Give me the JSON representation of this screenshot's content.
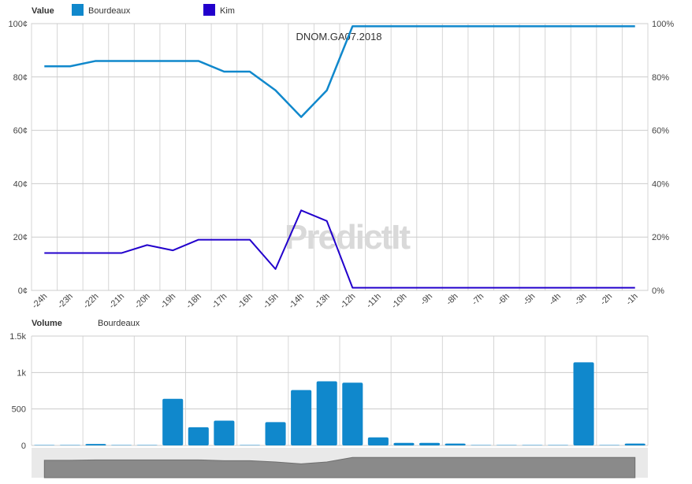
{
  "chart_data": [
    {
      "type": "line",
      "legend_title": "Value",
      "annotation": "DNOM.GA07.2018",
      "watermark": "PredictIt",
      "categories": [
        "-24h",
        "-23h",
        "-22h",
        "-21h",
        "-20h",
        "-19h",
        "-18h",
        "-17h",
        "-16h",
        "-15h",
        "-14h",
        "-13h",
        "-12h",
        "-11h",
        "-10h",
        "-9h",
        "-8h",
        "-7h",
        "-6h",
        "-5h",
        "-4h",
        "-3h",
        "-2h",
        "-1h"
      ],
      "ylim": [
        0,
        100
      ],
      "y_ticks_left": [
        "0¢",
        "20¢",
        "40¢",
        "60¢",
        "80¢",
        "100¢"
      ],
      "y_ticks_right": [
        "0%",
        "20%",
        "40%",
        "60%",
        "80%",
        "100%"
      ],
      "grid": true,
      "legend_position": "top-left",
      "series": [
        {
          "name": "Bourdeaux",
          "color": "#1088cc",
          "values": [
            84,
            84,
            86,
            86,
            86,
            86,
            86,
            82,
            82,
            75,
            65,
            75,
            99,
            99,
            99,
            99,
            99,
            99,
            99,
            99,
            99,
            99,
            99,
            99
          ]
        },
        {
          "name": "Kim",
          "color": "#2200cc",
          "values": [
            14,
            14,
            14,
            14,
            17,
            15,
            19,
            19,
            19,
            8,
            30,
            26,
            1,
            1,
            1,
            1,
            1,
            1,
            1,
            1,
            1,
            1,
            1,
            1
          ]
        }
      ]
    },
    {
      "type": "bar",
      "legend_title": "Volume",
      "series_label": "Bourdeaux",
      "color": "#1088cc",
      "categories": [
        "-24h",
        "-23h",
        "-22h",
        "-21h",
        "-20h",
        "-19h",
        "-18h",
        "-17h",
        "-16h",
        "-15h",
        "-14h",
        "-13h",
        "-12h",
        "-11h",
        "-10h",
        "-9h",
        "-8h",
        "-7h",
        "-6h",
        "-5h",
        "-4h",
        "-3h",
        "-2h",
        "-1h"
      ],
      "values": [
        5,
        5,
        20,
        5,
        5,
        640,
        250,
        340,
        5,
        320,
        760,
        880,
        860,
        110,
        35,
        35,
        25,
        5,
        5,
        5,
        5,
        1140,
        5,
        25
      ],
      "ylim": [
        0,
        1500
      ],
      "y_ticks": [
        "0",
        "500",
        "1k",
        "1.5k"
      ],
      "grid": true
    }
  ]
}
